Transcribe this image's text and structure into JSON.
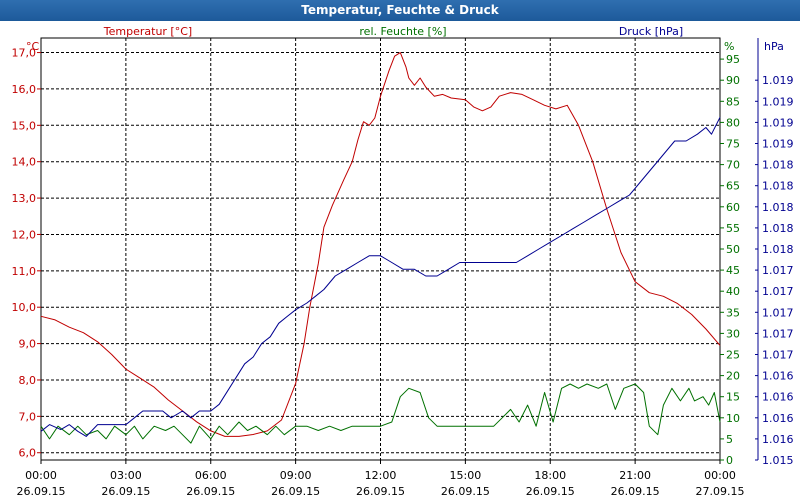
{
  "window": {
    "title": "Temperatur, Feuchte & Druck"
  },
  "colors": {
    "temperature": "#c00000",
    "humidity": "#007000",
    "pressure": "#000090",
    "axis_text": "#000000"
  },
  "chart_data": {
    "type": "line",
    "title": "Temperatur, Feuchte & Druck",
    "x": {
      "unit": "hours since 26.09.15 00:00",
      "ticks": [
        {
          "hour": 0,
          "time": "00:00",
          "date": "26.09.15"
        },
        {
          "hour": 3,
          "time": "03:00",
          "date": "26.09.15"
        },
        {
          "hour": 6,
          "time": "06:00",
          "date": "26.09.15"
        },
        {
          "hour": 9,
          "time": "09:00",
          "date": "26.09.15"
        },
        {
          "hour": 12,
          "time": "12:00",
          "date": "26.09.15"
        },
        {
          "hour": 15,
          "time": "15:00",
          "date": "26.09.15"
        },
        {
          "hour": 18,
          "time": "18:00",
          "date": "26.09.15"
        },
        {
          "hour": 21,
          "time": "21:00",
          "date": "26.09.15"
        },
        {
          "hour": 24,
          "time": "00:00",
          "date": "27.09.15"
        }
      ],
      "range": [
        0,
        24
      ]
    },
    "axes": {
      "temperature": {
        "unit_label": "°C",
        "legend": "Temperatur [°C]",
        "range": [
          5.8,
          17.4
        ],
        "ticks": [
          {
            "v": 6.0,
            "label": "6,0"
          },
          {
            "v": 7.0,
            "label": "7,0"
          },
          {
            "v": 8.0,
            "label": "8,0"
          },
          {
            "v": 9.0,
            "label": "9,0"
          },
          {
            "v": 10.0,
            "label": "10,0"
          },
          {
            "v": 11.0,
            "label": "11,0"
          },
          {
            "v": 12.0,
            "label": "12,0"
          },
          {
            "v": 13.0,
            "label": "13,0"
          },
          {
            "v": 14.0,
            "label": "14,0"
          },
          {
            "v": 15.0,
            "label": "15,0"
          },
          {
            "v": 16.0,
            "label": "16,0"
          },
          {
            "v": 17.0,
            "label": "17,0"
          }
        ]
      },
      "humidity": {
        "unit_label": "%",
        "legend": "rel. Feuchte [%]",
        "range": [
          0,
          100
        ],
        "ticks": [
          {
            "v": 0,
            "label": "0"
          },
          {
            "v": 5,
            "label": "5"
          },
          {
            "v": 10,
            "label": "10"
          },
          {
            "v": 15,
            "label": "15"
          },
          {
            "v": 20,
            "label": "20"
          },
          {
            "v": 25,
            "label": "25"
          },
          {
            "v": 30,
            "label": "30"
          },
          {
            "v": 35,
            "label": "35"
          },
          {
            "v": 40,
            "label": "40"
          },
          {
            "v": 45,
            "label": "45"
          },
          {
            "v": 50,
            "label": "50"
          },
          {
            "v": 55,
            "label": "55"
          },
          {
            "v": 60,
            "label": "60"
          },
          {
            "v": 65,
            "label": "65"
          },
          {
            "v": 70,
            "label": "70"
          },
          {
            "v": 75,
            "label": "75"
          },
          {
            "v": 80,
            "label": "80"
          },
          {
            "v": 85,
            "label": "85"
          },
          {
            "v": 90,
            "label": "90"
          },
          {
            "v": 95,
            "label": "95"
          }
        ]
      },
      "pressure": {
        "unit_label": "hPa",
        "legend": "Druck [hPa]",
        "range": [
          1015.0,
          1020.0
        ],
        "ticks": [
          {
            "v": 1015.0,
            "label": "1.015"
          },
          {
            "v": 1015.25,
            "label": "1.016"
          },
          {
            "v": 1015.5,
            "label": "1.016"
          },
          {
            "v": 1015.75,
            "label": "1.016"
          },
          {
            "v": 1016.0,
            "label": "1.016"
          },
          {
            "v": 1016.25,
            "label": "1.017"
          },
          {
            "v": 1016.5,
            "label": "1.017"
          },
          {
            "v": 1016.75,
            "label": "1.017"
          },
          {
            "v": 1017.0,
            "label": "1.017"
          },
          {
            "v": 1017.25,
            "label": "1.017"
          },
          {
            "v": 1017.5,
            "label": "1.018"
          },
          {
            "v": 1017.75,
            "label": "1.018"
          },
          {
            "v": 1018.0,
            "label": "1.018"
          },
          {
            "v": 1018.25,
            "label": "1.018"
          },
          {
            "v": 1018.5,
            "label": "1.018"
          },
          {
            "v": 1018.75,
            "label": "1.019"
          },
          {
            "v": 1019.0,
            "label": "1.019"
          },
          {
            "v": 1019.25,
            "label": "1.019"
          },
          {
            "v": 1019.5,
            "label": "1.019"
          }
        ]
      }
    },
    "grid": true,
    "series": [
      {
        "name": "Temperatur [°C]",
        "axis": "temperature",
        "color": "#c00000",
        "points": [
          [
            0,
            9.75
          ],
          [
            0.5,
            9.65
          ],
          [
            1.0,
            9.45
          ],
          [
            1.5,
            9.3
          ],
          [
            2.0,
            9.05
          ],
          [
            2.5,
            8.7
          ],
          [
            3.0,
            8.3
          ],
          [
            3.5,
            8.05
          ],
          [
            4.0,
            7.8
          ],
          [
            4.5,
            7.45
          ],
          [
            5.0,
            7.15
          ],
          [
            5.5,
            6.85
          ],
          [
            6.0,
            6.6
          ],
          [
            6.5,
            6.45
          ],
          [
            7.0,
            6.45
          ],
          [
            7.5,
            6.5
          ],
          [
            8.0,
            6.6
          ],
          [
            8.5,
            6.9
          ],
          [
            9.0,
            7.9
          ],
          [
            9.3,
            9.0
          ],
          [
            9.5,
            10.0
          ],
          [
            9.8,
            11.2
          ],
          [
            10.0,
            12.2
          ],
          [
            10.3,
            12.8
          ],
          [
            10.7,
            13.5
          ],
          [
            11.0,
            14.0
          ],
          [
            11.2,
            14.6
          ],
          [
            11.4,
            15.1
          ],
          [
            11.6,
            15.0
          ],
          [
            11.8,
            15.2
          ],
          [
            12.0,
            15.8
          ],
          [
            12.3,
            16.5
          ],
          [
            12.5,
            16.9
          ],
          [
            12.7,
            17.0
          ],
          [
            12.9,
            16.6
          ],
          [
            13.0,
            16.3
          ],
          [
            13.2,
            16.1
          ],
          [
            13.4,
            16.3
          ],
          [
            13.6,
            16.05
          ],
          [
            13.9,
            15.8
          ],
          [
            14.2,
            15.85
          ],
          [
            14.5,
            15.75
          ],
          [
            15.0,
            15.7
          ],
          [
            15.3,
            15.5
          ],
          [
            15.6,
            15.4
          ],
          [
            15.9,
            15.5
          ],
          [
            16.2,
            15.8
          ],
          [
            16.6,
            15.9
          ],
          [
            17.0,
            15.85
          ],
          [
            17.4,
            15.7
          ],
          [
            17.8,
            15.55
          ],
          [
            18.2,
            15.45
          ],
          [
            18.6,
            15.55
          ],
          [
            19.0,
            15.0
          ],
          [
            19.5,
            14.0
          ],
          [
            20.0,
            12.7
          ],
          [
            20.5,
            11.5
          ],
          [
            21.0,
            10.7
          ],
          [
            21.5,
            10.4
          ],
          [
            22.0,
            10.3
          ],
          [
            22.5,
            10.1
          ],
          [
            23.0,
            9.8
          ],
          [
            23.5,
            9.4
          ],
          [
            24.0,
            8.95
          ]
        ]
      },
      {
        "name": "rel. Feuchte [%]",
        "axis": "humidity",
        "color": "#007000",
        "points": [
          [
            0,
            8
          ],
          [
            0.3,
            5
          ],
          [
            0.6,
            8
          ],
          [
            1.0,
            6
          ],
          [
            1.3,
            8
          ],
          [
            1.6,
            6
          ],
          [
            2.0,
            7
          ],
          [
            2.3,
            5
          ],
          [
            2.6,
            8
          ],
          [
            3.0,
            6
          ],
          [
            3.3,
            8
          ],
          [
            3.6,
            5
          ],
          [
            4.0,
            8
          ],
          [
            4.4,
            7
          ],
          [
            4.7,
            8
          ],
          [
            5.0,
            6
          ],
          [
            5.3,
            4
          ],
          [
            5.6,
            8
          ],
          [
            6.0,
            5
          ],
          [
            6.3,
            8
          ],
          [
            6.6,
            6
          ],
          [
            7.0,
            9
          ],
          [
            7.3,
            7
          ],
          [
            7.6,
            8
          ],
          [
            8.0,
            6
          ],
          [
            8.3,
            8
          ],
          [
            8.6,
            6
          ],
          [
            9.0,
            8
          ],
          [
            9.4,
            8
          ],
          [
            9.8,
            7
          ],
          [
            10.2,
            8
          ],
          [
            10.6,
            7
          ],
          [
            11.0,
            8
          ],
          [
            11.5,
            8
          ],
          [
            12.0,
            8
          ],
          [
            12.4,
            9
          ],
          [
            12.7,
            15
          ],
          [
            13.0,
            17
          ],
          [
            13.4,
            16
          ],
          [
            13.7,
            10
          ],
          [
            14.0,
            8
          ],
          [
            14.5,
            8
          ],
          [
            15.0,
            8
          ],
          [
            15.5,
            8
          ],
          [
            16.0,
            8
          ],
          [
            16.3,
            10
          ],
          [
            16.6,
            12
          ],
          [
            16.9,
            9
          ],
          [
            17.2,
            13
          ],
          [
            17.5,
            8
          ],
          [
            17.8,
            16
          ],
          [
            18.1,
            9
          ],
          [
            18.4,
            17
          ],
          [
            18.7,
            18
          ],
          [
            19.0,
            17
          ],
          [
            19.3,
            18
          ],
          [
            19.7,
            17
          ],
          [
            20.0,
            18
          ],
          [
            20.3,
            12
          ],
          [
            20.6,
            17
          ],
          [
            21.0,
            18
          ],
          [
            21.3,
            16
          ],
          [
            21.5,
            8
          ],
          [
            21.8,
            6
          ],
          [
            22.0,
            13
          ],
          [
            22.3,
            17
          ],
          [
            22.6,
            14
          ],
          [
            22.9,
            17
          ],
          [
            23.1,
            14
          ],
          [
            23.4,
            15
          ],
          [
            23.6,
            13
          ],
          [
            23.8,
            16
          ],
          [
            24.0,
            9
          ]
        ]
      },
      {
        "name": "Druck [hPa]",
        "axis": "pressure",
        "color": "#000090",
        "points": [
          [
            0,
            1015.34
          ],
          [
            0.3,
            1015.42
          ],
          [
            0.7,
            1015.36
          ],
          [
            1.0,
            1015.42
          ],
          [
            1.3,
            1015.34
          ],
          [
            1.6,
            1015.28
          ],
          [
            2.0,
            1015.42
          ],
          [
            2.5,
            1015.42
          ],
          [
            3.0,
            1015.42
          ],
          [
            3.3,
            1015.5
          ],
          [
            3.6,
            1015.58
          ],
          [
            4.0,
            1015.58
          ],
          [
            4.3,
            1015.58
          ],
          [
            4.6,
            1015.5
          ],
          [
            5.0,
            1015.58
          ],
          [
            5.3,
            1015.5
          ],
          [
            5.6,
            1015.58
          ],
          [
            6.0,
            1015.58
          ],
          [
            6.3,
            1015.66
          ],
          [
            6.6,
            1015.82
          ],
          [
            6.9,
            1015.98
          ],
          [
            7.2,
            1016.14
          ],
          [
            7.5,
            1016.22
          ],
          [
            7.8,
            1016.38
          ],
          [
            8.1,
            1016.46
          ],
          [
            8.4,
            1016.62
          ],
          [
            8.7,
            1016.7
          ],
          [
            9.0,
            1016.78
          ],
          [
            9.4,
            1016.86
          ],
          [
            9.7,
            1016.94
          ],
          [
            10.0,
            1017.02
          ],
          [
            10.4,
            1017.18
          ],
          [
            10.8,
            1017.26
          ],
          [
            11.2,
            1017.34
          ],
          [
            11.6,
            1017.42
          ],
          [
            12.0,
            1017.42
          ],
          [
            12.4,
            1017.34
          ],
          [
            12.8,
            1017.26
          ],
          [
            13.2,
            1017.26
          ],
          [
            13.6,
            1017.18
          ],
          [
            14.0,
            1017.18
          ],
          [
            14.4,
            1017.26
          ],
          [
            14.8,
            1017.34
          ],
          [
            15.2,
            1017.34
          ],
          [
            15.6,
            1017.34
          ],
          [
            16.0,
            1017.34
          ],
          [
            16.4,
            1017.34
          ],
          [
            16.8,
            1017.34
          ],
          [
            17.2,
            1017.42
          ],
          [
            17.6,
            1017.5
          ],
          [
            18.0,
            1017.58
          ],
          [
            18.4,
            1017.66
          ],
          [
            18.8,
            1017.74
          ],
          [
            19.2,
            1017.82
          ],
          [
            19.6,
            1017.9
          ],
          [
            20.0,
            1017.98
          ],
          [
            20.4,
            1018.06
          ],
          [
            20.8,
            1018.14
          ],
          [
            21.2,
            1018.3
          ],
          [
            21.6,
            1018.46
          ],
          [
            22.0,
            1018.62
          ],
          [
            22.4,
            1018.78
          ],
          [
            22.8,
            1018.78
          ],
          [
            23.2,
            1018.86
          ],
          [
            23.5,
            1018.94
          ],
          [
            23.7,
            1018.86
          ],
          [
            24.0,
            1019.06
          ]
        ]
      }
    ]
  }
}
